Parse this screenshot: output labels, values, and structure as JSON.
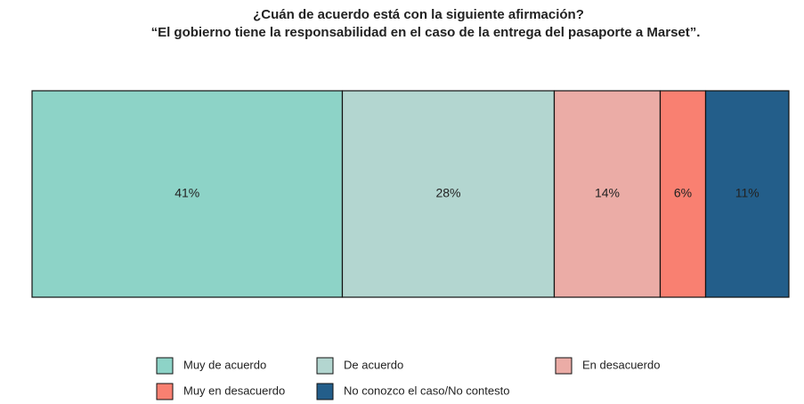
{
  "chart_data": {
    "type": "bar",
    "orientation": "horizontal",
    "stacked": true,
    "title": "¿Cuán de acuerdo está con la siguiente afirmación?",
    "subtitle": "“El gobierno tiene la responsabilidad en el caso de la entrega del pasaporte a Marset”.",
    "series": [
      {
        "name": "Muy de acuerdo",
        "color": "#8dd3c7",
        "values": [
          41
        ],
        "value_labels": [
          "41%"
        ]
      },
      {
        "name": "De acuerdo",
        "color": "#b3d6d0",
        "values": [
          28
        ],
        "value_labels": [
          "28%"
        ]
      },
      {
        "name": "En desacuerdo",
        "color": "#ebaca6",
        "values": [
          14
        ],
        "value_labels": [
          "14%"
        ]
      },
      {
        "name": "Muy en desacuerdo",
        "color": "#f98071",
        "values": [
          6
        ],
        "value_labels": [
          "6%"
        ]
      },
      {
        "name": "No conozco el caso/No contesto",
        "color": "#235e8a",
        "values": [
          11
        ],
        "value_labels": [
          "11%"
        ]
      }
    ],
    "legend": "bottom"
  }
}
